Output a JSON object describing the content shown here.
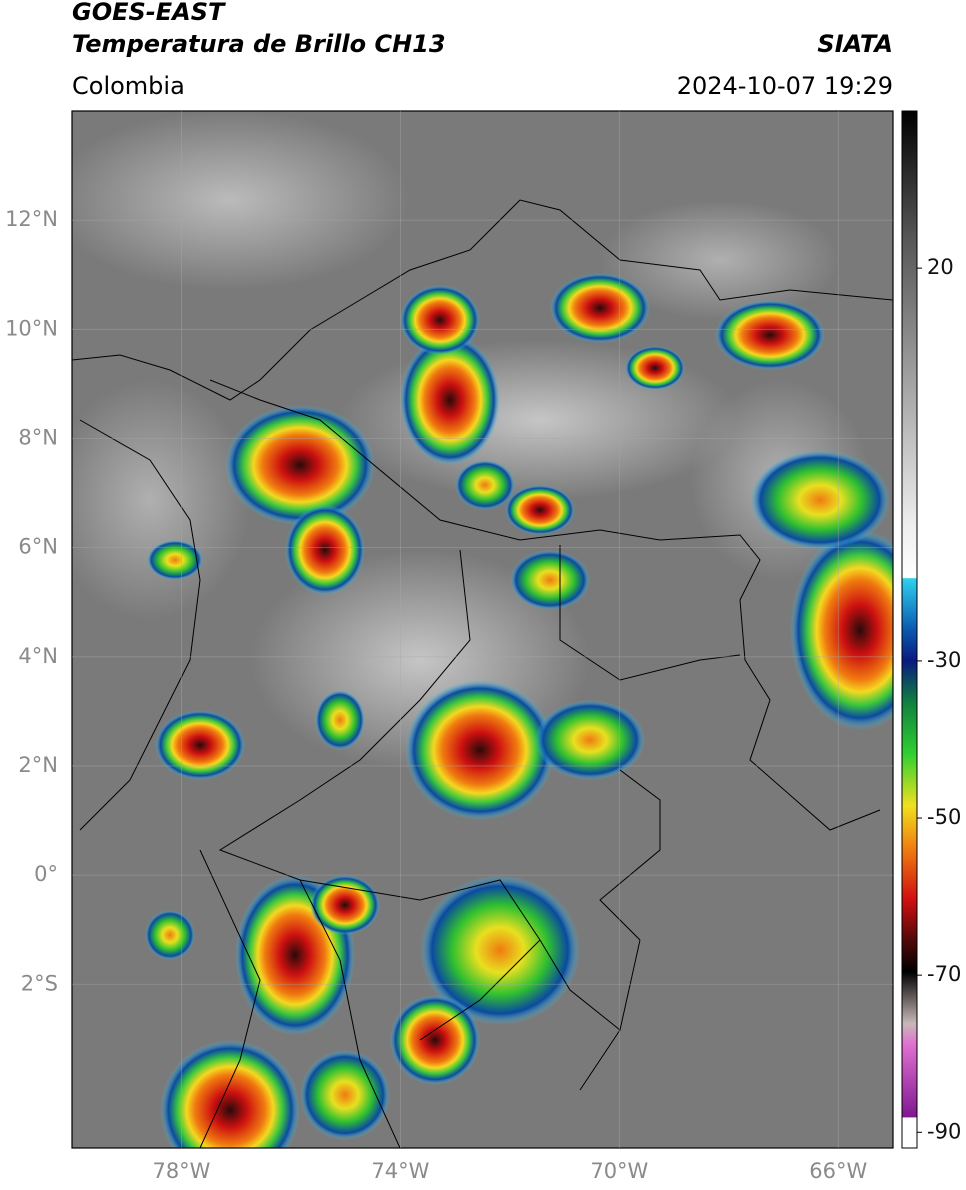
{
  "header": {
    "title": "GOES-EAST",
    "subtitle": "Temperatura de Brillo CH13",
    "region": "Colombia",
    "source": "SIATA",
    "datetime": "2024-10-07 19:29"
  },
  "map": {
    "xlim": [
      -80,
      -65
    ],
    "ylim": [
      -5,
      14
    ],
    "xticks": [
      {
        "value": -78,
        "label": "78°W"
      },
      {
        "value": -74,
        "label": "74°W"
      },
      {
        "value": -70,
        "label": "70°W"
      },
      {
        "value": -66,
        "label": "66°W"
      }
    ],
    "yticks": [
      {
        "value": 12,
        "label": "12°N"
      },
      {
        "value": 10,
        "label": "10°N"
      },
      {
        "value": 8,
        "label": "8°N"
      },
      {
        "value": 6,
        "label": "6°N"
      },
      {
        "value": 4,
        "label": "4°N"
      },
      {
        "value": 2,
        "label": "2°N"
      },
      {
        "value": 0,
        "label": "0°"
      },
      {
        "value": -2,
        "label": "2°S"
      }
    ],
    "grid": true
  },
  "colorbar": {
    "lim": [
      -92,
      40
    ],
    "ticks": [
      20,
      -30,
      -50,
      -70,
      -90
    ]
  }
}
